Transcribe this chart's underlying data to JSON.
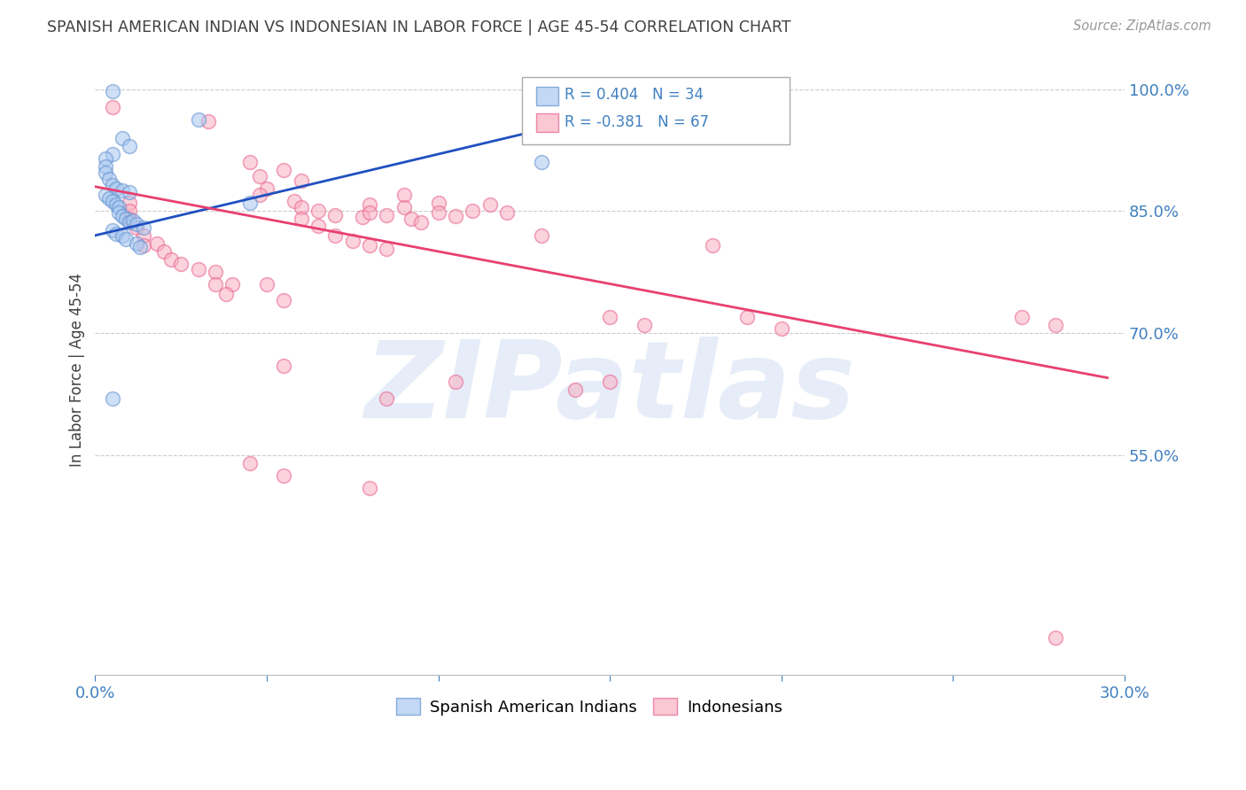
{
  "title": "SPANISH AMERICAN INDIAN VS INDONESIAN IN LABOR FORCE | AGE 45-54 CORRELATION CHART",
  "source_text": "Source: ZipAtlas.com",
  "ylabel": "In Labor Force | Age 45-54",
  "xlim": [
    0.0,
    0.3
  ],
  "ylim": [
    0.28,
    1.03
  ],
  "yticks": [
    1.0,
    0.85,
    0.7,
    0.55
  ],
  "ytick_labels": [
    "100.0%",
    "85.0%",
    "70.0%",
    "55.0%"
  ],
  "xticks": [
    0.0,
    0.05,
    0.1,
    0.15,
    0.2,
    0.25,
    0.3
  ],
  "xtick_labels": [
    "0.0%",
    "",
    "",
    "",
    "",
    "",
    "30.0%"
  ],
  "legend_label1": "Spanish American Indians",
  "legend_label2": "Indonesians",
  "legend_r1": "R = 0.404",
  "legend_n1": "N = 34",
  "legend_r2": "R = -0.381",
  "legend_n2": "N = 67",
  "blue_scatter": [
    [
      0.005,
      0.997
    ],
    [
      0.03,
      0.963
    ],
    [
      0.008,
      0.94
    ],
    [
      0.01,
      0.93
    ],
    [
      0.005,
      0.92
    ],
    [
      0.003,
      0.915
    ],
    [
      0.003,
      0.905
    ],
    [
      0.003,
      0.897
    ],
    [
      0.004,
      0.89
    ],
    [
      0.005,
      0.882
    ],
    [
      0.006,
      0.878
    ],
    [
      0.008,
      0.875
    ],
    [
      0.01,
      0.873
    ],
    [
      0.003,
      0.87
    ],
    [
      0.004,
      0.866
    ],
    [
      0.005,
      0.862
    ],
    [
      0.006,
      0.858
    ],
    [
      0.007,
      0.855
    ],
    [
      0.007,
      0.848
    ],
    [
      0.008,
      0.844
    ],
    [
      0.009,
      0.84
    ],
    [
      0.01,
      0.836
    ],
    [
      0.011,
      0.838
    ],
    [
      0.012,
      0.834
    ],
    [
      0.014,
      0.83
    ],
    [
      0.005,
      0.826
    ],
    [
      0.006,
      0.822
    ],
    [
      0.008,
      0.82
    ],
    [
      0.009,
      0.816
    ],
    [
      0.012,
      0.81
    ],
    [
      0.013,
      0.806
    ],
    [
      0.005,
      0.62
    ],
    [
      0.13,
      0.91
    ],
    [
      0.045,
      0.86
    ]
  ],
  "pink_scatter": [
    [
      0.005,
      0.978
    ],
    [
      0.033,
      0.96
    ],
    [
      0.045,
      0.91
    ],
    [
      0.055,
      0.9
    ],
    [
      0.048,
      0.893
    ],
    [
      0.06,
      0.887
    ],
    [
      0.05,
      0.878
    ],
    [
      0.048,
      0.87
    ],
    [
      0.058,
      0.862
    ],
    [
      0.06,
      0.855
    ],
    [
      0.065,
      0.85
    ],
    [
      0.07,
      0.845
    ],
    [
      0.078,
      0.843
    ],
    [
      0.08,
      0.858
    ],
    [
      0.08,
      0.848
    ],
    [
      0.085,
      0.845
    ],
    [
      0.09,
      0.87
    ],
    [
      0.09,
      0.855
    ],
    [
      0.092,
      0.84
    ],
    [
      0.095,
      0.836
    ],
    [
      0.1,
      0.86
    ],
    [
      0.1,
      0.848
    ],
    [
      0.105,
      0.844
    ],
    [
      0.11,
      0.85
    ],
    [
      0.115,
      0.858
    ],
    [
      0.12,
      0.848
    ],
    [
      0.06,
      0.84
    ],
    [
      0.065,
      0.832
    ],
    [
      0.07,
      0.82
    ],
    [
      0.075,
      0.813
    ],
    [
      0.08,
      0.808
    ],
    [
      0.085,
      0.804
    ],
    [
      0.01,
      0.86
    ],
    [
      0.01,
      0.85
    ],
    [
      0.01,
      0.84
    ],
    [
      0.012,
      0.83
    ],
    [
      0.014,
      0.82
    ],
    [
      0.014,
      0.808
    ],
    [
      0.018,
      0.81
    ],
    [
      0.02,
      0.8
    ],
    [
      0.022,
      0.79
    ],
    [
      0.025,
      0.785
    ],
    [
      0.03,
      0.778
    ],
    [
      0.035,
      0.775
    ],
    [
      0.035,
      0.76
    ],
    [
      0.04,
      0.76
    ],
    [
      0.038,
      0.748
    ],
    [
      0.05,
      0.76
    ],
    [
      0.055,
      0.74
    ],
    [
      0.13,
      0.82
    ],
    [
      0.18,
      0.808
    ],
    [
      0.15,
      0.72
    ],
    [
      0.19,
      0.72
    ],
    [
      0.16,
      0.71
    ],
    [
      0.2,
      0.705
    ],
    [
      0.15,
      0.64
    ],
    [
      0.27,
      0.72
    ],
    [
      0.28,
      0.71
    ],
    [
      0.055,
      0.66
    ],
    [
      0.105,
      0.64
    ],
    [
      0.14,
      0.63
    ],
    [
      0.085,
      0.62
    ],
    [
      0.045,
      0.54
    ],
    [
      0.055,
      0.525
    ],
    [
      0.08,
      0.51
    ],
    [
      0.28,
      0.325
    ]
  ],
  "blue_line_x": [
    0.0,
    0.15
  ],
  "blue_line_y": [
    0.82,
    0.97
  ],
  "pink_line_x": [
    0.0,
    0.295
  ],
  "pink_line_y": [
    0.88,
    0.645
  ],
  "scatter_size": 130,
  "scatter_alpha": 0.55,
  "blue_color": "#A8C8F0",
  "pink_color": "#F8B0C0",
  "blue_edge": "#6090D0",
  "pink_edge": "#E86090",
  "line_blue": "#2050C0",
  "line_pink": "#E84070",
  "grid_color": "#CCCCCC",
  "axis_color": "#4080C0",
  "title_color": "#404040",
  "watermark_color": "#C8D8F0",
  "watermark_alpha": 0.45,
  "background_color": "#FFFFFF"
}
